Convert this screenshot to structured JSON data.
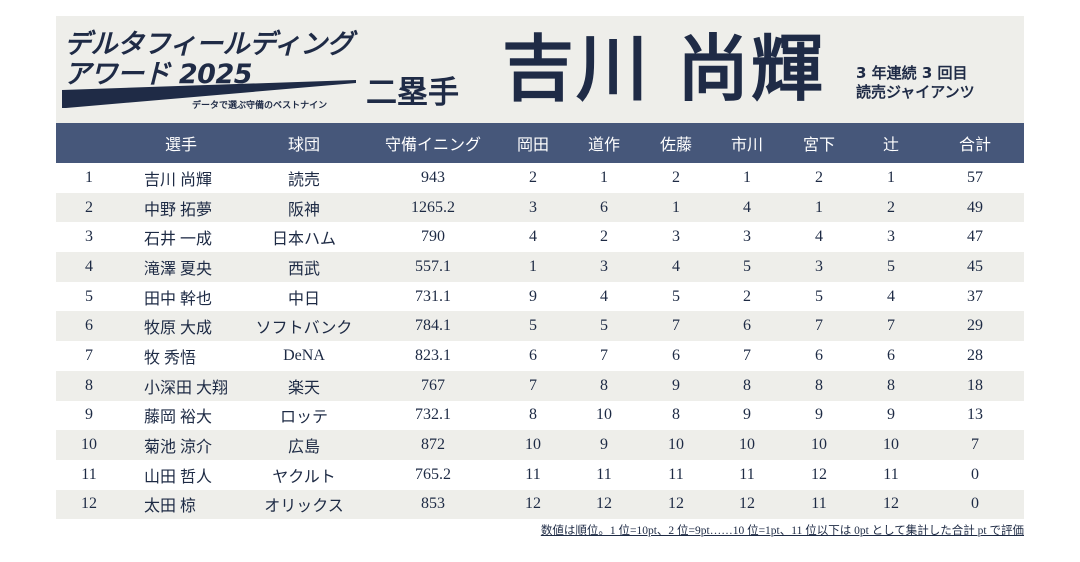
{
  "award": {
    "title_line1": "デルタフィールディング",
    "title_line2": "アワード 2025",
    "tagline": "データで選ぶ守備のベストナイン"
  },
  "winner": {
    "position": "二塁手",
    "name": "吉川 尚輝",
    "streak": "3 年連続 3 回目",
    "team": "読売ジャイアンツ"
  },
  "table": {
    "columns": [
      "",
      "選手",
      "球団",
      "守備イニング",
      "岡田",
      "道作",
      "佐藤",
      "市川",
      "宮下",
      "辻",
      "合計"
    ],
    "rows": [
      [
        "1",
        "吉川 尚輝",
        "読売",
        "943",
        "2",
        "1",
        "2",
        "1",
        "2",
        "1",
        "57"
      ],
      [
        "2",
        "中野 拓夢",
        "阪神",
        "1265.2",
        "3",
        "6",
        "1",
        "4",
        "1",
        "2",
        "49"
      ],
      [
        "3",
        "石井 一成",
        "日本ハム",
        "790",
        "4",
        "2",
        "3",
        "3",
        "4",
        "3",
        "47"
      ],
      [
        "4",
        "滝澤 夏央",
        "西武",
        "557.1",
        "1",
        "3",
        "4",
        "5",
        "3",
        "5",
        "45"
      ],
      [
        "5",
        "田中 幹也",
        "中日",
        "731.1",
        "9",
        "4",
        "5",
        "2",
        "5",
        "4",
        "37"
      ],
      [
        "6",
        "牧原 大成",
        "ソフトバンク",
        "784.1",
        "5",
        "5",
        "7",
        "6",
        "7",
        "7",
        "29"
      ],
      [
        "7",
        "牧 秀悟",
        "DeNA",
        "823.1",
        "6",
        "7",
        "6",
        "7",
        "6",
        "6",
        "28"
      ],
      [
        "8",
        "小深田 大翔",
        "楽天",
        "767",
        "7",
        "8",
        "9",
        "8",
        "8",
        "8",
        "18"
      ],
      [
        "9",
        "藤岡 裕大",
        "ロッテ",
        "732.1",
        "8",
        "10",
        "8",
        "9",
        "9",
        "9",
        "13"
      ],
      [
        "10",
        "菊池 涼介",
        "広島",
        "872",
        "10",
        "9",
        "10",
        "10",
        "10",
        "10",
        "7"
      ],
      [
        "11",
        "山田 哲人",
        "ヤクルト",
        "765.2",
        "11",
        "11",
        "11",
        "11",
        "12",
        "11",
        "0"
      ],
      [
        "12",
        "太田 椋",
        "オリックス",
        "853",
        "12",
        "12",
        "12",
        "12",
        "11",
        "12",
        "0"
      ]
    ]
  },
  "footnote": "数値は順位。1 位=10pt、2 位=9pt……10 位=1pt、11 位以下は 0pt として集計した合計 pt で評価",
  "colors": {
    "navy": "#1f2b46",
    "header_bg": "#46577a",
    "stripe": "#eeeeea"
  }
}
